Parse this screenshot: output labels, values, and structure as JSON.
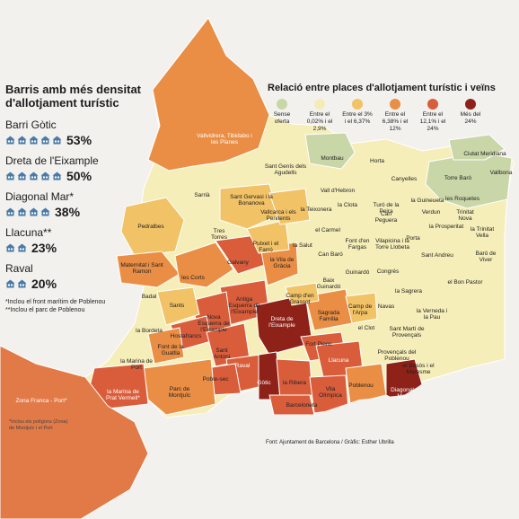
{
  "title": "Relació entre places d'allotjament turístic i veïns",
  "panel": {
    "title_line1": "Barris amb més densitat",
    "title_line2": "d'allotjament turístic",
    "rows": [
      {
        "name": "Barri Gòtic",
        "houses": 5,
        "pct": "53%"
      },
      {
        "name": "Dreta de l'Eixample",
        "houses": 5,
        "pct": "50%"
      },
      {
        "name": "Diagonal Mar*",
        "houses": 4,
        "pct": "38%"
      },
      {
        "name": "Llacuna**",
        "houses": 2,
        "pct": "23%"
      },
      {
        "name": "Raval",
        "houses": 2,
        "pct": "20%"
      }
    ],
    "note1": "*Inclou el front marítim de Poblenou",
    "note2": "**Inclou el parc de Poblenou"
  },
  "legend": [
    {
      "label": "Sense oferta",
      "color": "#c9d6a8"
    },
    {
      "label": "Entre el 0,02% i el 2,9%",
      "color": "#f4ecb6"
    },
    {
      "label": "Entre el 3% i el 6,37%",
      "color": "#f2c266"
    },
    {
      "label": "Entre el 6,38% i el 12%",
      "color": "#e98e44"
    },
    {
      "label": "Entre el 12,1% i el 24%",
      "color": "#d95d3b"
    },
    {
      "label": "Més del 24%",
      "color": "#8e2219"
    }
  ],
  "labels": {
    "vallvidrera": "Vallvidrera, Tibidabo i les Planes",
    "montbau": "Montbau",
    "sant_genis": "Sant Genís dels Agudells",
    "horta": "Horta",
    "ciutat_meridiana": "Ciutat Meridiana",
    "vallbona": "Vallbona",
    "torre_baro": "Torre Baró",
    "sarria": "Sarrià",
    "sant_gervasi_bonanova": "Sant Gervasi i la Bonanova",
    "vall_hebron": "Vall d'Hebron",
    "canyelles": "Canyelles",
    "guineueta": "la Guineueta",
    "roquetes": "les Roquetes",
    "verdun": "Verdun",
    "trinitat_nova": "Trinitat Nova",
    "vallcarca": "Vallcarca i els Penitents",
    "teixonera": "la Teixonera",
    "clota": "la Clota",
    "turo_peira": "Turó de la Peira",
    "can_peguera": "Can Peguera",
    "prosperitat": "la Prosperitat",
    "trinitat_vella": "la Trinitat Vella",
    "pedralbes": "Pedralbes",
    "tres_torres": "Tres Torres",
    "putxet": "Putxet i el Farró",
    "salut": "la Salut",
    "carmel": "el Carmel",
    "font_fargas": "Font d'en Fargas",
    "vilapicina": "Vilapicina i la Torre Llobeta",
    "porta": "Porta",
    "baro_viver": "Baró de Viver",
    "maternitat": "Maternitat i Sant Ramon",
    "corts": "les Corts",
    "galvany": "Galvany",
    "vila_gracia": "la Vila de Gràcia",
    "can_baro": "Can Baró",
    "sant_andreu": "Sant Andreu",
    "guinardo": "Guinardó",
    "congres": "Congrés",
    "badal": "Badal",
    "baix_guinardo": "Baix Guinardó",
    "camp_grassot": "Camp d'en Grassot",
    "sagrera": "la Sagrera",
    "bon_pastor": "el Bon Pastor",
    "sants": "Sants",
    "antiga_esquerra": "Antiga Esquerra de l'Eixample",
    "camp_arpa": "Camp de l'Arpa",
    "navas": "Navas",
    "verneda": "la Verneda i la Pau",
    "bordeta": "la Bordeta",
    "nova_esquerra": "Nova Esquerra de l'Eixample",
    "dreta_eixample": "Dreta de l'Eixample",
    "sagrada_familia": "Sagrada Família",
    "clot": "el Clot",
    "sant_marti_provencals": "Sant Martí de Provençals",
    "hostafrancs": "Hostafrancs",
    "font_guatlla": "Font de la Guatlla",
    "sant_antoni": "Sant Antoni",
    "fort_pienc": "Fort Pienc",
    "provencals_poblenou": "Provençals del Poblenou",
    "marina_port": "la Marina de Port",
    "raval": "Raval",
    "llacuna": "Llacuna",
    "besos_maresme": "el Besòs i el Maresme",
    "poble_sec": "Poble-sec",
    "parc_montjuic": "Parc de Montjuïc",
    "gotic": "Gòtic",
    "ribera": "la Ribera",
    "vila_olimpica": "Vila Olímpica",
    "poblenou": "Poblenou",
    "diagonal_mar": "Diagonal Mar",
    "marina_prat": "la Marina de Prat Vermell*",
    "zona_franca": "Zona Franca - Port*",
    "barceloneta": "Barceloneta"
  },
  "note_zona": "*Inclou els polígons (Zona) de Montjuïc i el Port",
  "source": "Font: Ajuntament de Barcelona / Gràfic: Esther Ubrilla"
}
